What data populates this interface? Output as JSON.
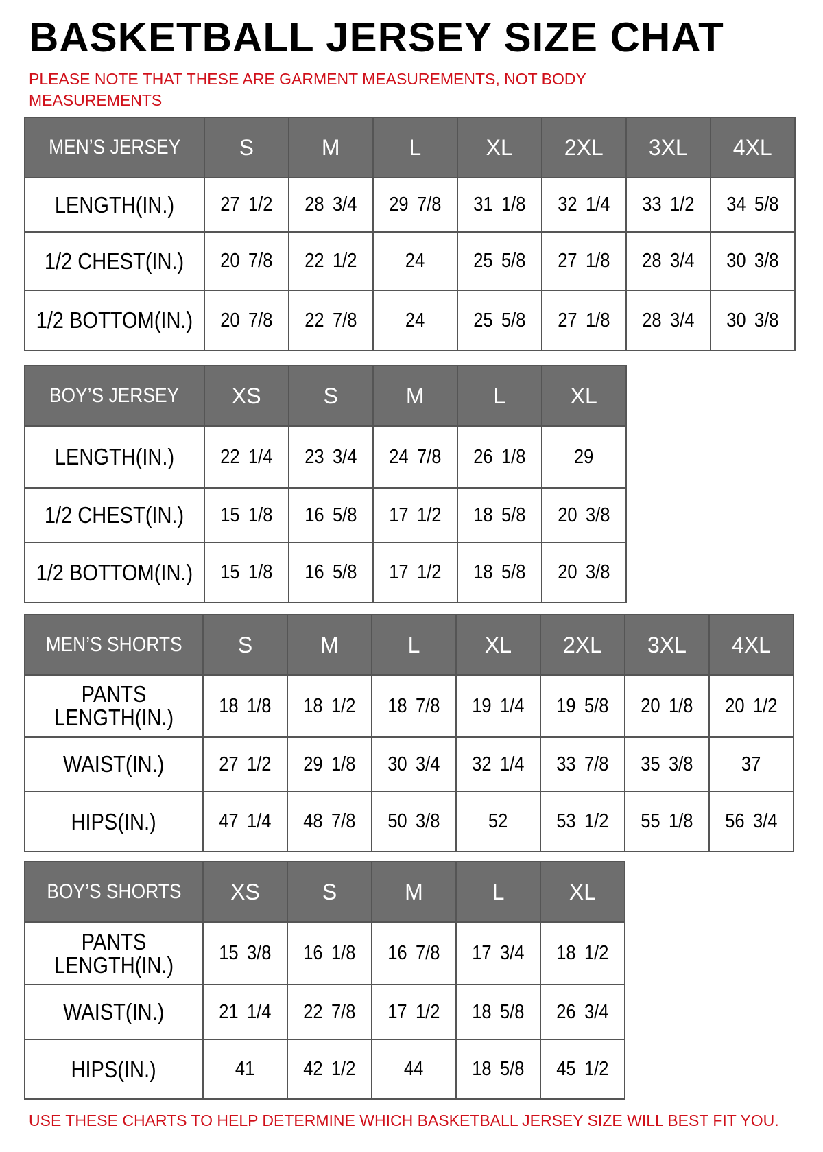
{
  "title": "BASKETBALL JERSEY SIZE CHAT",
  "note": "PLEASE NOTE THAT THESE ARE GARMENT MEASUREMENTS, NOT BODY MEASUREMENTS",
  "footer": "USE THESE CHARTS TO HELP DETERMINE WHICH BASKETBALL JERSEY SIZE WILL BEST FIT YOU.",
  "colors": {
    "header_bg": "#6e6e6e",
    "note_red": "#d0101a"
  },
  "tables": [
    {
      "heading": "MEN’S JERSEY",
      "sizes": [
        "S",
        "M",
        "L",
        "XL",
        "2XL",
        "3XL",
        "4XL"
      ],
      "rows": [
        {
          "label": "LENGTH(IN.)",
          "values": [
            "27 1/2",
            "28 3/4",
            "29 7/8",
            "31 1/8",
            "32 1/4",
            "33 1/2",
            "34 5/8"
          ]
        },
        {
          "label": "1/2 CHEST(IN.)",
          "values": [
            "20 7/8",
            "22 1/2",
            "24",
            "25 5/8",
            "27 1/8",
            "28 3/4",
            "30 3/8"
          ]
        },
        {
          "label": "1/2 BOTTOM(IN.)",
          "values": [
            "20 7/8",
            "22 7/8",
            "24",
            "25 5/8",
            "27 1/8",
            "28 3/4",
            "30 3/8"
          ]
        }
      ]
    },
    {
      "heading": "BOY’S JERSEY",
      "sizes": [
        "XS",
        "S",
        "M",
        "L",
        "XL"
      ],
      "rows": [
        {
          "label": "LENGTH(IN.)",
          "values": [
            "22 1/4",
            "23 3/4",
            "24 7/8",
            "26 1/8",
            "29"
          ]
        },
        {
          "label": "1/2 CHEST(IN.)",
          "values": [
            "15 1/8",
            "16 5/8",
            "17 1/2",
            "18 5/8",
            "20 3/8"
          ]
        },
        {
          "label": "1/2 BOTTOM(IN.)",
          "values": [
            "15 1/8",
            "16 5/8",
            "17 1/2",
            "18 5/8",
            "20 3/8"
          ]
        }
      ]
    },
    {
      "heading": "MEN’S SHORTS",
      "sizes": [
        "S",
        "M",
        "L",
        "XL",
        "2XL",
        "3XL",
        "4XL"
      ],
      "rows": [
        {
          "label": "PANTS LENGTH(IN.)",
          "values": [
            "18 1/8",
            "18 1/2",
            "18 7/8",
            "19 1/4",
            "19 5/8",
            "20 1/8",
            "20 1/2"
          ]
        },
        {
          "label": "WAIST(IN.)",
          "values": [
            "27 1/2",
            "29 1/8",
            "30 3/4",
            "32 1/4",
            "33 7/8",
            "35 3/8",
            "37"
          ]
        },
        {
          "label": "HIPS(IN.)",
          "values": [
            "47 1/4",
            "48 7/8",
            "50 3/8",
            "52",
            "53 1/2",
            "55 1/8",
            "56 3/4"
          ]
        }
      ]
    },
    {
      "heading": "BOY’S SHORTS",
      "sizes": [
        "XS",
        "S",
        "M",
        "L",
        "XL"
      ],
      "rows": [
        {
          "label": "PANTS LENGTH(IN.)",
          "values": [
            "15 3/8",
            "16 1/8",
            "16 7/8",
            "17 3/4",
            "18 1/2"
          ]
        },
        {
          "label": "WAIST(IN.)",
          "values": [
            "21 1/4",
            "22 7/8",
            "17 1/2",
            "18 5/8",
            "26 3/4"
          ]
        },
        {
          "label": "HIPS(IN.)",
          "values": [
            "41",
            "42 1/2",
            "44",
            "18 5/8",
            "45 1/2"
          ]
        }
      ]
    }
  ]
}
